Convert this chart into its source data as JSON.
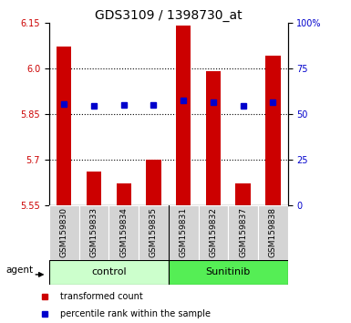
{
  "title": "GDS3109 / 1398730_at",
  "samples": [
    "GSM159830",
    "GSM159833",
    "GSM159834",
    "GSM159835",
    "GSM159831",
    "GSM159832",
    "GSM159837",
    "GSM159838"
  ],
  "red_values": [
    6.07,
    5.66,
    5.62,
    5.7,
    6.14,
    5.99,
    5.62,
    6.04
  ],
  "blue_values": [
    5.882,
    5.875,
    5.878,
    5.878,
    5.893,
    5.887,
    5.876,
    5.887
  ],
  "baseline": 5.55,
  "ylim_left": [
    5.55,
    6.15
  ],
  "ylim_right": [
    0,
    100
  ],
  "yticks_left": [
    5.55,
    5.7,
    5.85,
    6.0,
    6.15
  ],
  "yticks_right": [
    0,
    25,
    50,
    75,
    100
  ],
  "ytick_labels_right": [
    "0",
    "25",
    "50",
    "75",
    "100%"
  ],
  "grid_lines": [
    5.7,
    5.85,
    6.0
  ],
  "bar_color": "#cc0000",
  "dot_color": "#0000cc",
  "bar_width": 0.5,
  "control_color": "#ccffcc",
  "sunitinib_color": "#55ee55",
  "agent_label": "agent",
  "legend_red": "transformed count",
  "legend_blue": "percentile rank within the sample",
  "title_fontsize": 10,
  "tick_fontsize": 7,
  "label_fontsize": 6.5,
  "group_fontsize": 8,
  "legend_fontsize": 7
}
